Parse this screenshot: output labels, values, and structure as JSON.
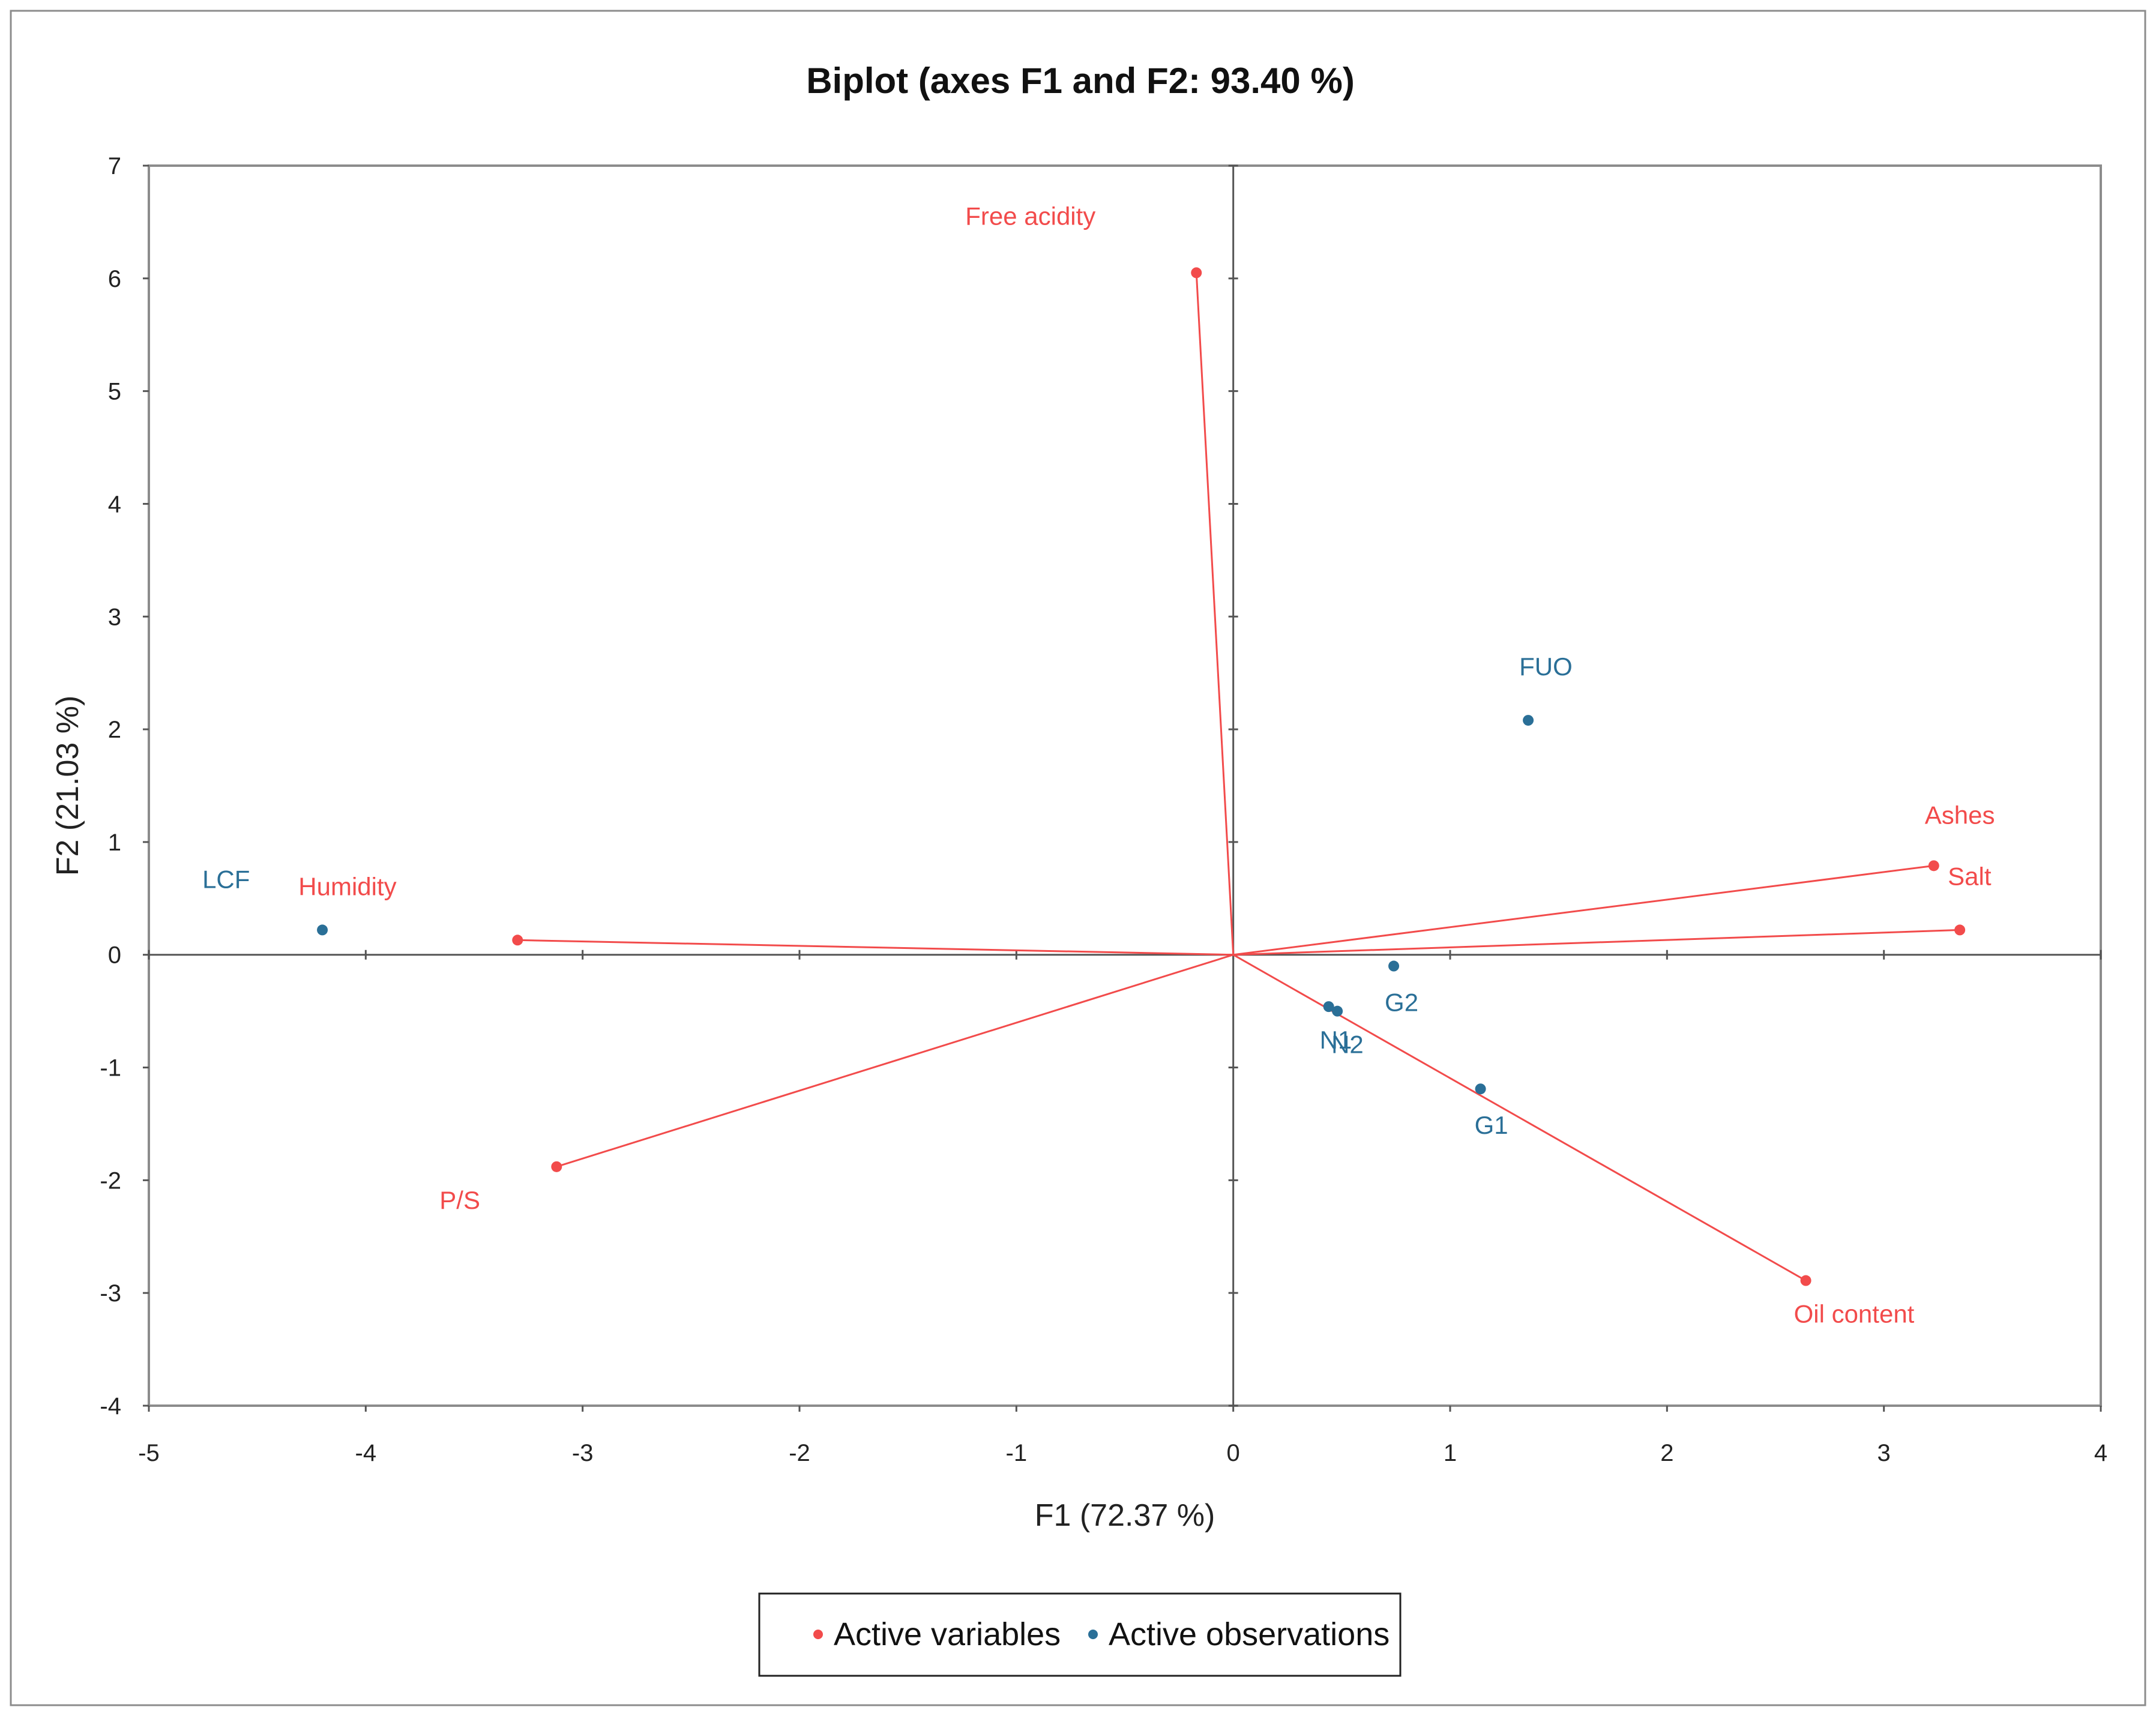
{
  "colors": {
    "variables": "#f24b4b",
    "observations": "#2a6f97"
  },
  "chart_data": {
    "type": "scatter",
    "subtype": "biplot",
    "title": "Biplot (axes F1 and F2: 93.40 %)",
    "xlabel": "F1 (72.37 %)",
    "ylabel": "F2 (21.03 %)",
    "xlim": [
      -5,
      4
    ],
    "ylim": [
      -4,
      7
    ],
    "xticks": [
      "-5",
      "-4",
      "-3",
      "-2",
      "-1",
      "0",
      "1",
      "2",
      "3",
      "4"
    ],
    "yticks": [
      "-4",
      "-3",
      "-2",
      "-1",
      "0",
      "1",
      "2",
      "3",
      "4",
      "5",
      "6",
      "7"
    ],
    "grid": false,
    "series": [
      {
        "name": "Active variables",
        "color": "#f24b4b",
        "vectors_from_origin": true,
        "points": [
          {
            "label": "Free acidity",
            "x": -0.17,
            "y": 6.05
          },
          {
            "label": "Humidity",
            "x": -3.3,
            "y": 0.13
          },
          {
            "label": "P/S",
            "x": -3.12,
            "y": -1.88
          },
          {
            "label": "Ashes",
            "x": 3.23,
            "y": 0.79
          },
          {
            "label": "Salt",
            "x": 3.35,
            "y": 0.22
          },
          {
            "label": "Oil content",
            "x": 2.64,
            "y": -2.89
          }
        ]
      },
      {
        "name": "Active observations",
        "color": "#2a6f97",
        "vectors_from_origin": false,
        "points": [
          {
            "label": "LCF",
            "x": -4.2,
            "y": 0.22
          },
          {
            "label": "FUO",
            "x": 1.36,
            "y": 2.08
          },
          {
            "label": "G2",
            "x": 0.74,
            "y": -0.1
          },
          {
            "label": "N1",
            "x": 0.44,
            "y": -0.46
          },
          {
            "label": "N2",
            "x": 0.48,
            "y": -0.5
          },
          {
            "label": "G1",
            "x": 1.14,
            "y": -1.19
          }
        ]
      }
    ],
    "legend": {
      "position": "bottom-center",
      "entries": [
        "Active variables",
        "Active observations"
      ]
    }
  }
}
